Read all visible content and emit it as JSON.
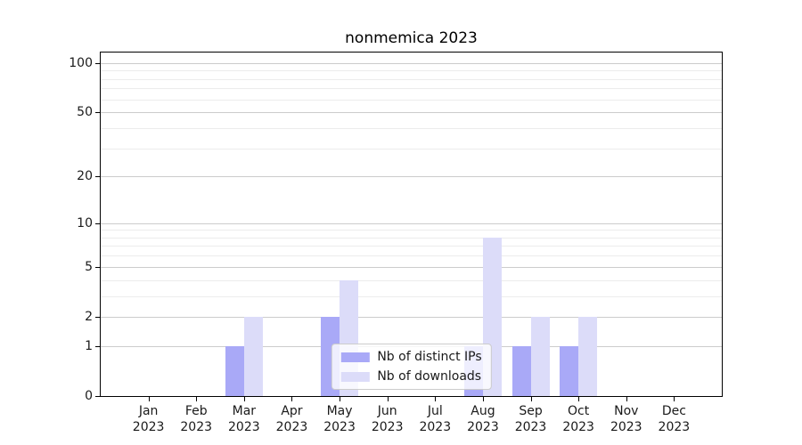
{
  "chart_data": {
    "type": "bar",
    "title": "nonmemica 2023",
    "categories": [
      "Jan",
      "Feb",
      "Mar",
      "Apr",
      "May",
      "Jun",
      "Jul",
      "Aug",
      "Sep",
      "Oct",
      "Nov",
      "Dec"
    ],
    "category_year": "2023",
    "series": [
      {
        "name": "Nb of distinct IPs",
        "color": "#a9a9f7",
        "values": [
          0,
          0,
          1,
          0,
          2,
          0,
          0,
          1,
          1,
          1,
          0,
          0
        ]
      },
      {
        "name": "Nb of downloads",
        "color": "#dcdcf9",
        "values": [
          0,
          0,
          2,
          0,
          4,
          0,
          0,
          8,
          2,
          2,
          0,
          0
        ]
      }
    ],
    "yscale": "log1p",
    "ylim": [
      0,
      116
    ],
    "yticks": [
      0,
      1,
      2,
      5,
      10,
      20,
      50,
      100
    ],
    "yticks_minor": [
      3,
      4,
      6,
      7,
      8,
      9,
      30,
      40,
      60,
      70,
      80,
      90
    ],
    "grid": "horizontal-only",
    "legend_position": "lower center",
    "colors": {
      "major_grid": "#cccccc",
      "minor_grid": "#ececec",
      "spine": "#000000",
      "text": "#1a1a1a"
    }
  }
}
